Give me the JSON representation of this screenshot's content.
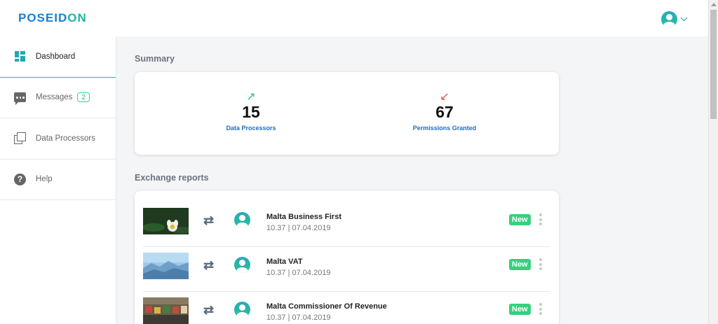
{
  "brand": {
    "part1": "POSEID",
    "part2": "ON"
  },
  "sidebar": {
    "items": [
      {
        "label": "Dashboard",
        "icon": "dashboard-icon"
      },
      {
        "label": "Messages",
        "icon": "message-icon",
        "badge": "2"
      },
      {
        "label": "Data Processors",
        "icon": "data-processors-icon"
      },
      {
        "label": "Help",
        "icon": "help-icon",
        "glyph": "?"
      }
    ]
  },
  "summary": {
    "title": "Summary",
    "stats": [
      {
        "value": "15",
        "label": "Data Processors",
        "arrow": "↗",
        "color": "#27c29a"
      },
      {
        "value": "67",
        "label": "Permissions Granted",
        "arrow": "↙",
        "color": "#e04848"
      }
    ]
  },
  "reports": {
    "title": "Exchange reports",
    "items": [
      {
        "title": "Malta Business First",
        "time": "10.37 | 07.04.2019",
        "badge": "New",
        "image": "lotus-photo"
      },
      {
        "title": "Malta VAT",
        "time": "10.37 | 07.04.2019",
        "badge": "New",
        "image": "mountains-photo"
      },
      {
        "title": "Malta Commissioner Of Revenue",
        "time": "10.37 | 07.04.2019",
        "badge": "New",
        "image": "market-photo"
      }
    ]
  },
  "colors": {
    "accent": "#27b5a8",
    "link": "#1a6fc4",
    "new": "#37d07e"
  }
}
